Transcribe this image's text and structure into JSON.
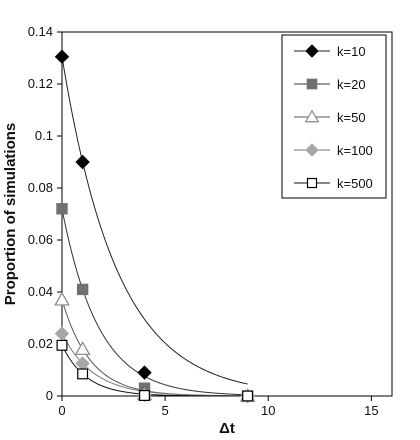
{
  "chart_data": {
    "type": "line",
    "title": "",
    "xlabel": "Δt",
    "ylabel": "Proportion of simulations",
    "xlim": [
      0,
      16
    ],
    "ylim": [
      0,
      0.14
    ],
    "xticks": [
      0,
      5,
      10,
      15
    ],
    "yticks": [
      0,
      0.02,
      0.04,
      0.06,
      0.08,
      0.1,
      0.12,
      0.14
    ],
    "grid": false,
    "legend_position": "top-right",
    "series": [
      {
        "name": "k=10",
        "marker": "diamond",
        "color": "#000000",
        "line_color": "#222222",
        "x": [
          0,
          1,
          4,
          9
        ],
        "y": [
          0.1305,
          0.09,
          0.009,
          0
        ]
      },
      {
        "name": "k=20",
        "marker": "square",
        "color": "#707070",
        "line_color": "#333333",
        "x": [
          0,
          1,
          4,
          9
        ],
        "y": [
          0.072,
          0.041,
          0.003,
          0
        ]
      },
      {
        "name": "k=50",
        "marker": "triangle-open",
        "color": "#888888",
        "line_color": "#555555",
        "x": [
          0,
          1,
          4,
          9
        ],
        "y": [
          0.037,
          0.018,
          0.0005,
          0
        ]
      },
      {
        "name": "k=100",
        "marker": "diamond",
        "color": "#a6a6a6",
        "line_color": "#777777",
        "x": [
          0,
          1,
          4,
          9
        ],
        "y": [
          0.024,
          0.0125,
          0.0003,
          0
        ]
      },
      {
        "name": "k=500",
        "marker": "square-open",
        "color": "#000000",
        "line_color": "#111111",
        "x": [
          0,
          1,
          4,
          9
        ],
        "y": [
          0.0195,
          0.0085,
          0.0002,
          0
        ]
      }
    ]
  }
}
